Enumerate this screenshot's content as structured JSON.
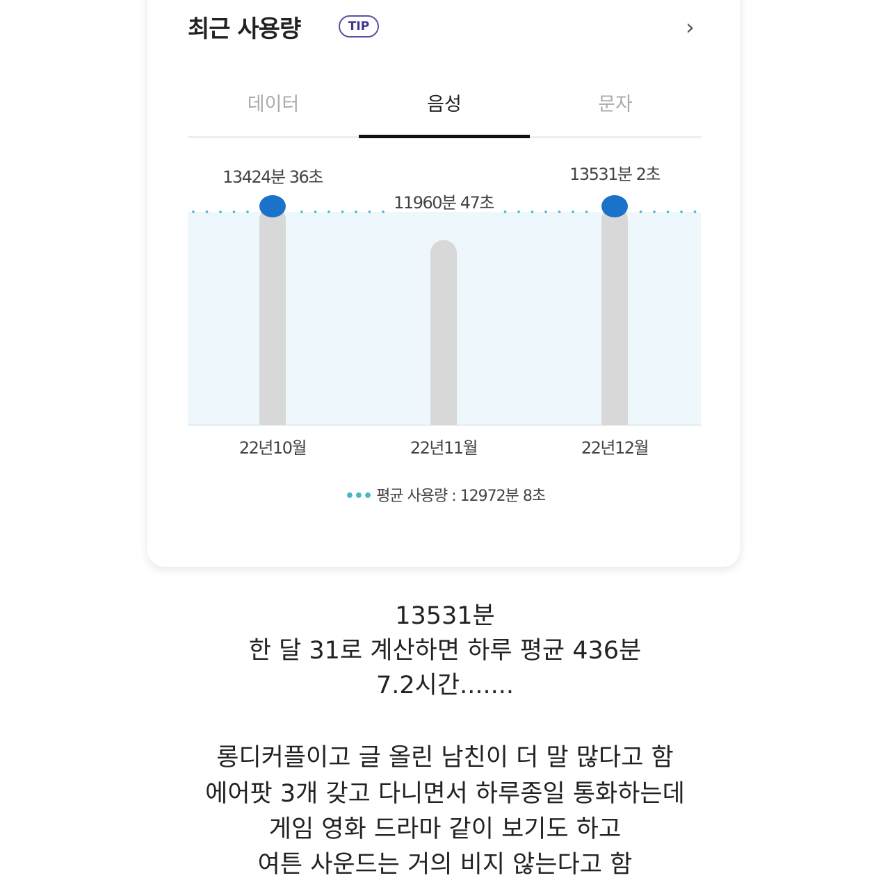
{
  "card": {
    "title": "최근 사용량",
    "tip_badge": "TIP",
    "chevron": "›",
    "tabs": [
      {
        "label": "데이터",
        "active": false
      },
      {
        "label": "음성",
        "active": true
      },
      {
        "label": "문자",
        "active": false
      }
    ],
    "legend": {
      "marker": "•••",
      "label": "평균 사용량 : 12972분 8초"
    }
  },
  "chart_data": {
    "type": "bar",
    "categories": [
      "22년10월",
      "22년11월",
      "22년12월"
    ],
    "values": [
      13424.6,
      11960.78,
      13531.03
    ],
    "data_labels": [
      "13424분 36초",
      "11960분 47초",
      "13531분 2초"
    ],
    "average": 12972.13,
    "average_label": "평균 사용량 : 12972분 8초",
    "unit": "분",
    "highlighted": [
      true,
      false,
      true
    ],
    "colors": {
      "bar": "#d8d8d8",
      "dot": "#1a73c8",
      "avg_line": "#48b7c8",
      "area": "#eef7fb"
    }
  },
  "body_lines": [
    "13531분",
    "한 달 31로 계산하면 하루 평균 436분",
    "7.2시간.......",
    "롱디커플이고 글 올린 남친이 더 말 많다고 함",
    "에어팟 3개 갖고 다니면서 하루종일 통화하는데",
    "게임 영화 드라마 같이 보기도 하고",
    "여튼 사운드는 거의 비지 않는다고 함"
  ]
}
